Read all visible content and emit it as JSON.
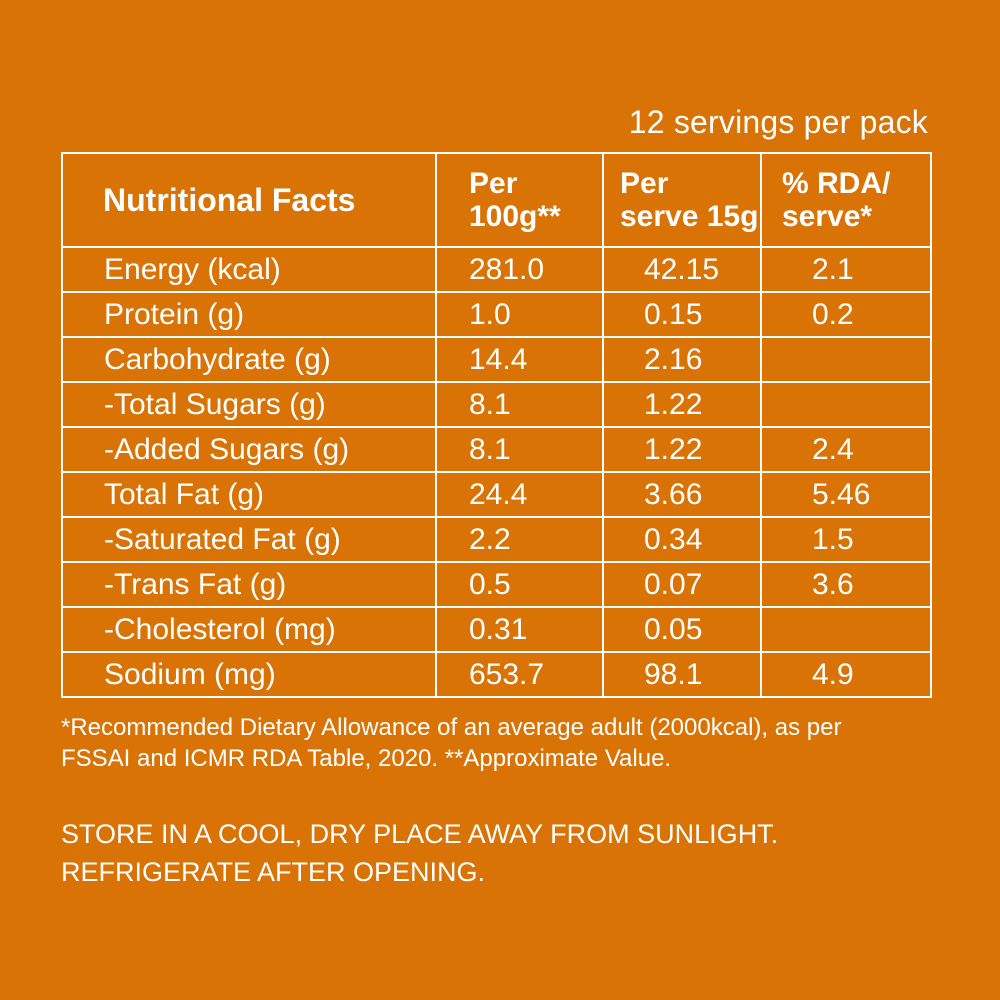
{
  "servings": "12 servings per pack",
  "table": {
    "header": {
      "title": "Nutritional Facts",
      "col1_line1": "Per",
      "col1_line2": "100g**",
      "col2_line1": "Per",
      "col2_line2": "serve 15g",
      "col3_line1": "% RDA/",
      "col3_line2": "serve*"
    },
    "rows": [
      {
        "name": "Energy (kcal)",
        "per100g": "281.0",
        "perServe": "42.15",
        "rda": "2.1"
      },
      {
        "name": "Protein (g)",
        "per100g": "1.0",
        "perServe": "0.15",
        "rda": "0.2"
      },
      {
        "name": "Carbohydrate (g)",
        "per100g": "14.4",
        "perServe": "2.16",
        "rda": ""
      },
      {
        "name": "-Total Sugars (g)",
        "per100g": "8.1",
        "perServe": "1.22",
        "rda": ""
      },
      {
        "name": "-Added Sugars (g)",
        "per100g": "8.1",
        "perServe": "1.22",
        "rda": "2.4"
      },
      {
        "name": "Total Fat (g)",
        "per100g": "24.4",
        "perServe": "3.66",
        "rda": "5.46"
      },
      {
        "name": "-Saturated Fat (g)",
        "per100g": "2.2",
        "perServe": "0.34",
        "rda": "1.5"
      },
      {
        "name": "-Trans Fat (g)",
        "per100g": "0.5",
        "perServe": "0.07",
        "rda": "3.6"
      },
      {
        "name": "-Cholesterol (mg)",
        "per100g": "0.31",
        "perServe": "0.05",
        "rda": ""
      },
      {
        "name": "Sodium (mg)",
        "per100g": "653.7",
        "perServe": "98.1",
        "rda": "4.9"
      }
    ]
  },
  "footnote_line1": "*Recommended Dietary Allowance of an average adult (2000kcal), as per",
  "footnote_line2": "FSSAI and ICMR RDA Table, 2020. **Approximate Value.",
  "storage_line1": "STORE IN A COOL, DRY PLACE AWAY FROM SUNLIGHT.",
  "storage_line2": "REFRIGERATE AFTER OPENING.",
  "colors": {
    "background": "#d97305",
    "text": "#ffffff"
  }
}
